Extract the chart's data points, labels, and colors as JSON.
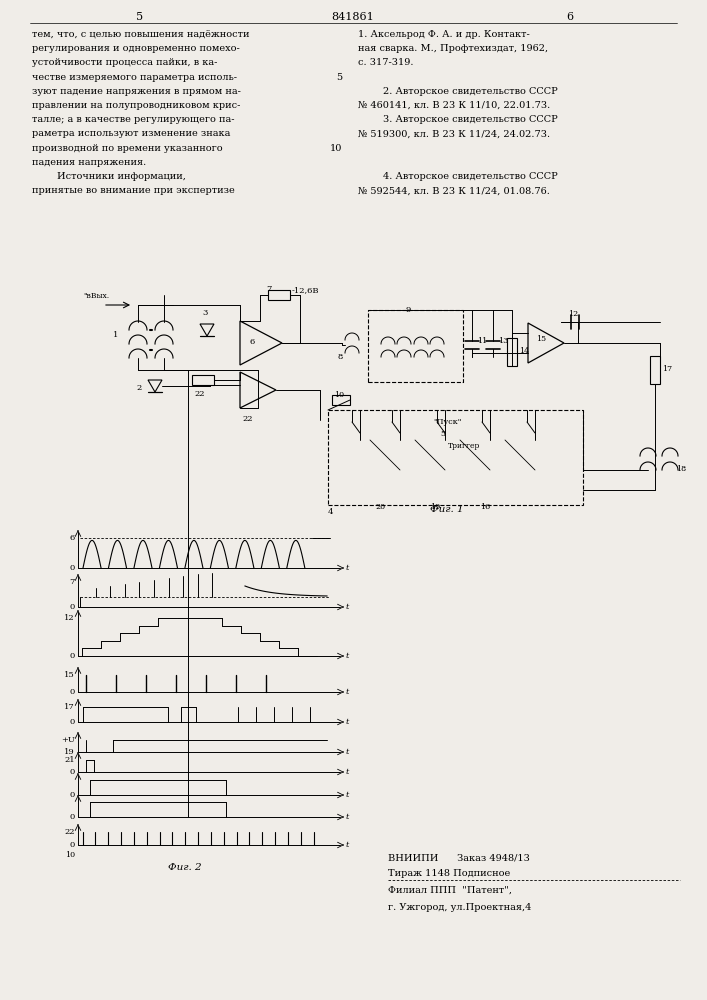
{
  "page_color": "#f0ede8",
  "title_number": "841861",
  "left_col_number": "5",
  "right_col_number": "6",
  "left_text_lines": [
    "тем, что, с целью повышения надёжности",
    "регулирования и одновременно помехо-",
    "устойчивости процесса пайки, в ка-",
    "честве измеряемого параметра исполь-",
    "зуют падение напряжения в прямом на-",
    "правлении на полупроводниковом крис-",
    "талле; а в качестве регулирующего па-",
    "раметра используют изменение знака",
    "производной по времени указанного",
    "падения напряжения.",
    "        Источники информации,",
    "принятые во внимание при экспертизе"
  ],
  "right_text_lines": [
    "1. Аксельрод Ф. А. и др. Контакт-",
    "ная сварка. М., Профтехиздат, 1962,",
    "с. 317-319.",
    "",
    "        2. Авторское свидетельство СССР",
    "№ 460141, кл. В 23 К 11/10, 22.01.73.",
    "        3. Авторское свидетельство СССР",
    "№ 519300, кл. В 23 К 11/24, 24.02.73.",
    "",
    "",
    "        4. Авторское свидетельство СССР",
    "№ 592544, кл. В 23 К 11/24, 01.08.76."
  ],
  "fig1_label": "Фиг. 1",
  "fig2_label": "Фиг. 2",
  "bottom_info_lines": [
    "ВНИИПИ      Заказ 4948/13",
    "Тираж 1148 Подписное",
    "Филиал ППП  \"Патент\",",
    "г. Ужгород, ул.Проектная,4"
  ]
}
